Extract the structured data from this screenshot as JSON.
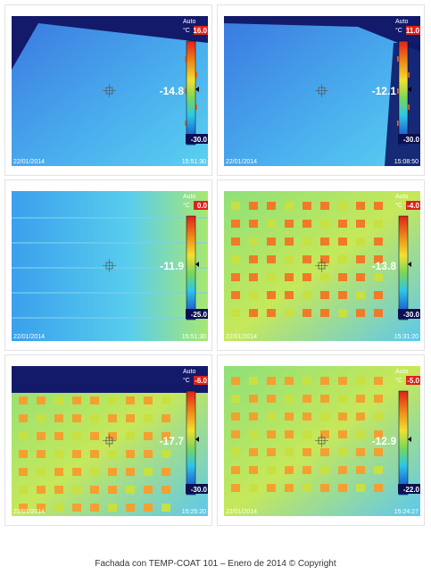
{
  "images": [
    {
      "mode": "Auto",
      "unit": "°C",
      "max": "16.0",
      "min": "-30.0",
      "reading": "-14.8",
      "date": "22/01/2014",
      "time": "15:51:30"
    },
    {
      "mode": "Auto",
      "unit": "°C",
      "max": "11.0",
      "min": "-30.0",
      "reading": "-12.1",
      "date": "22/01/2014",
      "time": "15:08:50"
    },
    {
      "mode": "Auto",
      "unit": "°C",
      "max": "0.0",
      "min": "-25.0",
      "reading": "-11.9",
      "date": "22/01/2014",
      "time": "15:51:30"
    },
    {
      "mode": "Auto",
      "unit": "°C",
      "max": "-4.0",
      "min": "-30.0",
      "reading": "-13.8",
      "date": "22/01/2014",
      "time": "15:31:20"
    },
    {
      "mode": "Auto",
      "unit": "°C",
      "max": "-6.0",
      "min": "-30.0",
      "reading": "-17.7",
      "date": "22/01/2014",
      "time": "15:25:20"
    },
    {
      "mode": "Auto",
      "unit": "°C",
      "max": "-5.0",
      "min": "-22.0",
      "reading": "-12.9",
      "date": "22/01/2014",
      "time": "15:24:27"
    }
  ],
  "caption": "Fachada con TEMP-COAT 101 – Enero de 2014 © Copyright"
}
